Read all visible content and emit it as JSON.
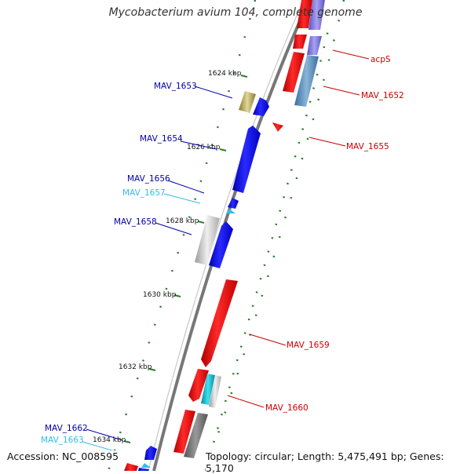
{
  "title": "Mycobacterium avium 104, complete genome",
  "footer": {
    "accession": "Accession: NC_008595",
    "stats": "Topology: circular; Length: 5,475,491 bp; Genes: 5,170"
  },
  "ticks": [
    {
      "label": "1624 kbp"
    },
    {
      "label": "1626 kbp"
    },
    {
      "label": "1628 kbp"
    },
    {
      "label": "1630 kbp"
    },
    {
      "label": "1632 kbp"
    },
    {
      "label": "1634 kbp"
    }
  ],
  "gene_labels": [
    {
      "name": "acpS",
      "strand": "plus",
      "color": "#cc0000"
    },
    {
      "name": "MAV_1652",
      "strand": "plus",
      "color": "#cc0000"
    },
    {
      "name": "MAV_1653",
      "strand": "minus",
      "color": "#0000aa"
    },
    {
      "name": "MAV_1654",
      "strand": "minus",
      "color": "#0000aa"
    },
    {
      "name": "MAV_1655",
      "strand": "plus",
      "color": "#cc0000"
    },
    {
      "name": "MAV_1656",
      "strand": "minus",
      "color": "#0000aa"
    },
    {
      "name": "MAV_1657",
      "strand": "minus",
      "color": "#33bbee"
    },
    {
      "name": "MAV_1658",
      "strand": "minus",
      "color": "#0000aa"
    },
    {
      "name": "MAV_1659",
      "strand": "plus",
      "color": "#cc0000"
    },
    {
      "name": "MAV_1660",
      "strand": "plus",
      "color": "#cc0000"
    },
    {
      "name": "MAV_1662",
      "strand": "minus",
      "color": "#0000aa"
    },
    {
      "name": "MAV_1663",
      "strand": "minus",
      "color": "#33bbee"
    }
  ],
  "colors": {
    "plus_cds": "#ff0000",
    "minus_cds": "#0000ff",
    "rna": "#33bbee",
    "backbone": "#888888",
    "gc_skew": "#2a7f2a"
  }
}
